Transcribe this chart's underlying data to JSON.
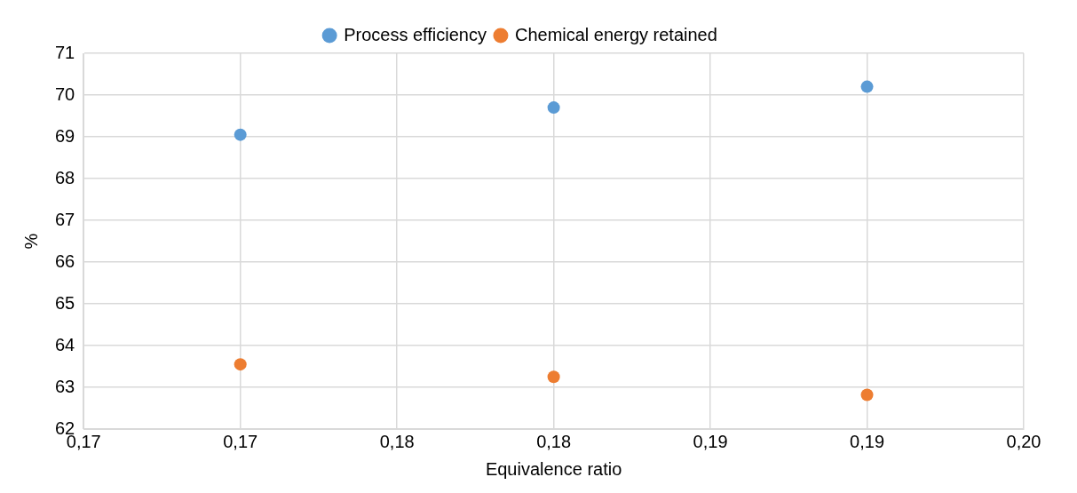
{
  "chart_data": {
    "type": "scatter",
    "xlabel": "Equivalence ratio",
    "ylabel": "%",
    "x": [
      0.17,
      0.18,
      0.19
    ],
    "series": [
      {
        "name": "Process efficiency",
        "color": "#5b9bd5",
        "values": [
          69.05,
          69.7,
          70.2
        ]
      },
      {
        "name": "Chemical energy retained",
        "color": "#ed7d31",
        "values": [
          63.55,
          63.25,
          62.82
        ]
      }
    ],
    "xlim": [
      0.165,
      0.195
    ],
    "xticks": [
      {
        "value": 0.165,
        "label": "0,17"
      },
      {
        "value": 0.17,
        "label": "0,17"
      },
      {
        "value": 0.175,
        "label": "0,18"
      },
      {
        "value": 0.18,
        "label": "0,18"
      },
      {
        "value": 0.185,
        "label": "0,19"
      },
      {
        "value": 0.19,
        "label": "0,19"
      },
      {
        "value": 0.195,
        "label": "0,20"
      }
    ],
    "ylim": [
      62,
      71
    ],
    "yticks": [
      62,
      63,
      64,
      65,
      66,
      67,
      68,
      69,
      70,
      71
    ],
    "grid": true,
    "legend": "top",
    "marker": "circle"
  }
}
